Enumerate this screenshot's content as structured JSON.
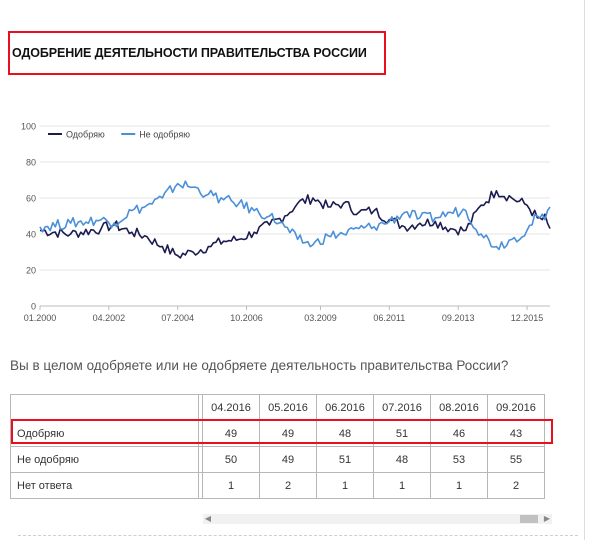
{
  "title": "ОДОБРЕНИЕ ДЕЯТЕЛЬНОСТИ ПРАВИТЕЛЬСТВА РОССИИ",
  "question": "Вы в целом одобряете или не одобряете деятельность правительства России?",
  "colors": {
    "approve": "#1b1b4f",
    "disapprove": "#4a90d9",
    "highlight": "#e8101e"
  },
  "chart_data": {
    "type": "line",
    "title": "",
    "xlabel": "",
    "ylabel": "",
    "ylim": [
      0,
      100
    ],
    "y_ticks": [
      "0",
      "20",
      "40",
      "60",
      "80",
      "100"
    ],
    "x_ticks": [
      "01.2000",
      "04.2002",
      "07.2004",
      "10.2006",
      "03.2009",
      "06.2011",
      "09.2013",
      "12.2015"
    ],
    "x_range": [
      "01.2000",
      "09.2016"
    ],
    "grid": true,
    "legend_position": "top-left",
    "series": [
      {
        "name": "Одобряю",
        "color": "#1b1b4f",
        "points": [
          [
            "01.2000",
            42
          ],
          [
            "01.2001",
            40
          ],
          [
            "01.2002",
            43
          ],
          [
            "06.2002",
            45
          ],
          [
            "01.2003",
            41
          ],
          [
            "06.2003",
            39
          ],
          [
            "01.2004",
            33
          ],
          [
            "07.2004",
            28
          ],
          [
            "01.2005",
            30
          ],
          [
            "07.2005",
            33
          ],
          [
            "01.2006",
            36
          ],
          [
            "07.2006",
            37
          ],
          [
            "01.2007",
            41
          ],
          [
            "07.2007",
            45
          ],
          [
            "01.2008",
            50
          ],
          [
            "06.2008",
            57
          ],
          [
            "12.2008",
            60
          ],
          [
            "06.2009",
            55
          ],
          [
            "12.2009",
            57
          ],
          [
            "06.2010",
            52
          ],
          [
            "12.2010",
            53
          ],
          [
            "06.2011",
            48
          ],
          [
            "12.2011",
            44
          ],
          [
            "06.2012",
            46
          ],
          [
            "12.2012",
            47
          ],
          [
            "06.2013",
            43
          ],
          [
            "12.2013",
            42
          ],
          [
            "06.2014",
            56
          ],
          [
            "12.2014",
            64
          ],
          [
            "06.2015",
            60
          ],
          [
            "12.2015",
            56
          ],
          [
            "04.2016",
            49
          ],
          [
            "05.2016",
            49
          ],
          [
            "06.2016",
            48
          ],
          [
            "07.2016",
            51
          ],
          [
            "08.2016",
            46
          ],
          [
            "09.2016",
            43
          ]
        ]
      },
      {
        "name": "Не одобряю",
        "color": "#4a90d9",
        "points": [
          [
            "01.2000",
            44
          ],
          [
            "01.2001",
            46
          ],
          [
            "01.2002",
            48
          ],
          [
            "06.2002",
            46
          ],
          [
            "01.2003",
            53
          ],
          [
            "06.2003",
            55
          ],
          [
            "01.2004",
            60
          ],
          [
            "07.2004",
            68
          ],
          [
            "01.2005",
            66
          ],
          [
            "07.2005",
            62
          ],
          [
            "01.2006",
            59
          ],
          [
            "07.2006",
            57
          ],
          [
            "01.2007",
            53
          ],
          [
            "07.2007",
            50
          ],
          [
            "01.2008",
            44
          ],
          [
            "06.2008",
            37
          ],
          [
            "12.2008",
            34
          ],
          [
            "06.2009",
            39
          ],
          [
            "12.2009",
            40
          ],
          [
            "06.2010",
            43
          ],
          [
            "12.2010",
            44
          ],
          [
            "06.2011",
            47
          ],
          [
            "12.2011",
            52
          ],
          [
            "06.2012",
            49
          ],
          [
            "12.2012",
            49
          ],
          [
            "06.2013",
            52
          ],
          [
            "12.2013",
            53
          ],
          [
            "06.2014",
            40
          ],
          [
            "12.2014",
            33
          ],
          [
            "06.2015",
            37
          ],
          [
            "12.2015",
            42
          ],
          [
            "04.2016",
            50
          ],
          [
            "05.2016",
            49
          ],
          [
            "06.2016",
            51
          ],
          [
            "07.2016",
            48
          ],
          [
            "08.2016",
            53
          ],
          [
            "09.2016",
            55
          ]
        ]
      }
    ]
  },
  "table": {
    "columns": [
      "04.2016",
      "05.2016",
      "06.2016",
      "07.2016",
      "08.2016",
      "09.2016"
    ],
    "rows": [
      {
        "label": "Одобряю",
        "values": [
          "49",
          "49",
          "48",
          "51",
          "46",
          "43"
        ]
      },
      {
        "label": "Не одобряю",
        "values": [
          "50",
          "49",
          "51",
          "48",
          "53",
          "55"
        ]
      },
      {
        "label": "Нет ответа",
        "values": [
          "1",
          "2",
          "1",
          "1",
          "1",
          "2"
        ]
      }
    ]
  }
}
